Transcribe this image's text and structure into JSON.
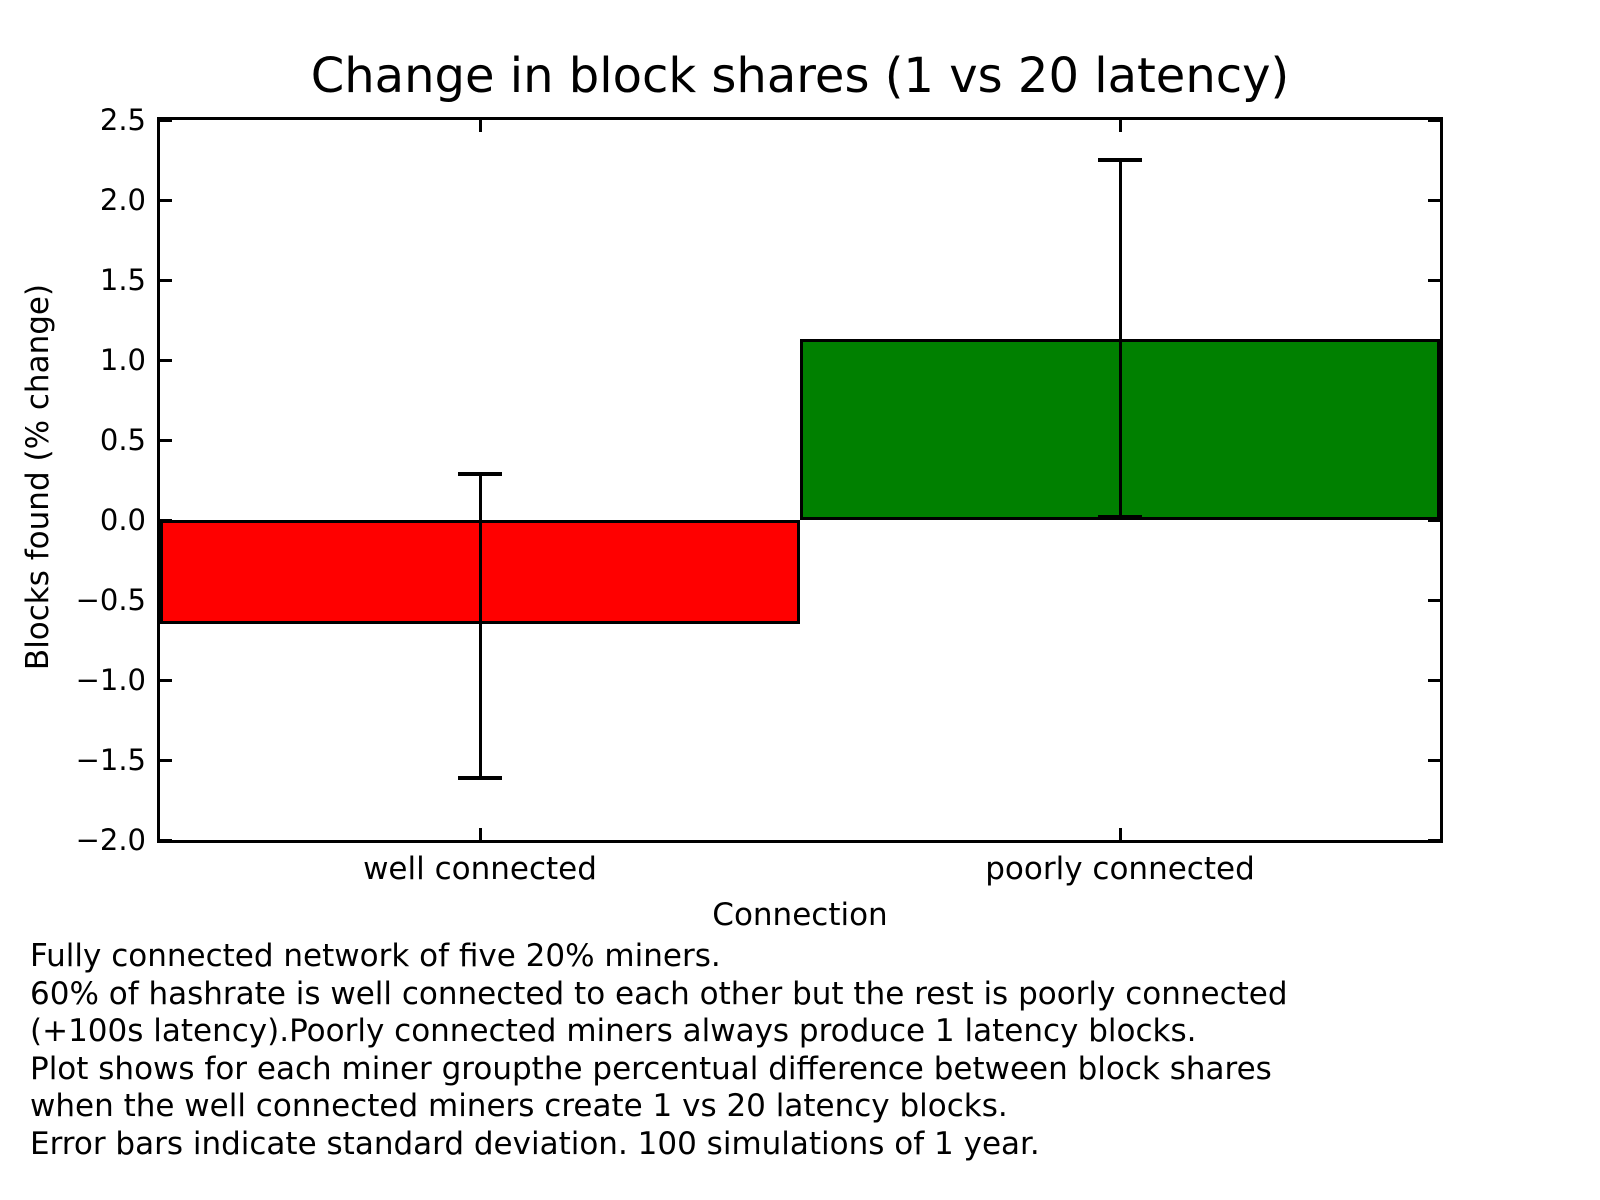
{
  "chart_data": {
    "type": "bar",
    "title": "Change in block shares (1 vs 20 latency)",
    "xlabel": "Connection",
    "ylabel": "Blocks found (% change)",
    "categories": [
      "well connected",
      "poorly connected"
    ],
    "values": [
      -0.65,
      1.13
    ],
    "error_bar_ranges": [
      [
        -1.61,
        0.29
      ],
      [
        0.02,
        2.25
      ]
    ],
    "bar_colors": [
      "#ff0000",
      "#008000"
    ],
    "ylim": [
      -2.0,
      2.5
    ],
    "ytick_step": 0.5,
    "bar_width_frac": 1.0,
    "grid": false,
    "legend": null,
    "ticks_direction": "in",
    "error_bars_note": "standard deviation"
  },
  "caption": {
    "lines": [
      "Fully connected network of five 20% miners.",
      "60% of hashrate is well connected to each other but the rest is poorly connected",
      "(+100s latency).Poorly connected miners always produce 1 latency blocks.",
      "Plot shows for each miner groupthe percentual difference between block shares",
      "when the well connected miners create 1 vs 20 latency blocks.",
      "Error bars indicate standard deviation. 100 simulations of 1 year."
    ]
  }
}
